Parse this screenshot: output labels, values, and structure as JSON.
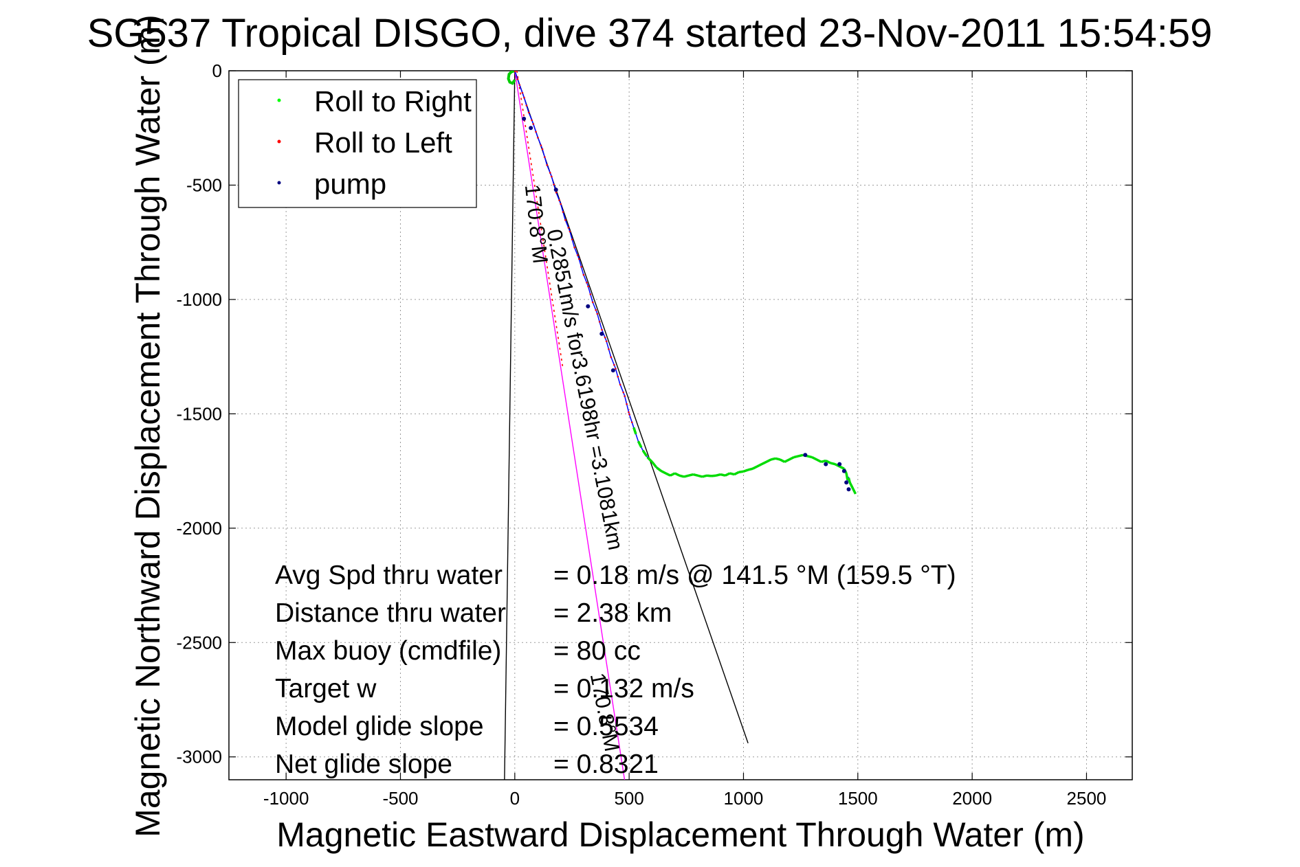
{
  "chart_data": {
    "type": "line",
    "title": "SG537 Tropical DISGO, dive 374 started 23-Nov-2011 15:54:59",
    "xlabel": "Magnetic Eastward Displacement Through Water (m)",
    "ylabel": "Magnetic Northward Displacement Through Water (m)",
    "xlim": [
      -1250,
      2700
    ],
    "ylim": [
      -3100,
      0
    ],
    "xticks": [
      -1000,
      -500,
      0,
      500,
      1000,
      1500,
      2000,
      2500
    ],
    "yticks": [
      0,
      -500,
      -1000,
      -1500,
      -2000,
      -2500,
      -3000
    ],
    "grid": true,
    "legend": {
      "position": "top-left",
      "entries": [
        {
          "label": "Roll to Right",
          "color": "#00ff00"
        },
        {
          "label": "Roll to Left",
          "color": "#ff0000"
        },
        {
          "label": "pump",
          "color": "#000080"
        }
      ]
    },
    "track": {
      "name": "track",
      "color": "#0000ff",
      "x": [
        0,
        20,
        40,
        60,
        80,
        100,
        120,
        140,
        160,
        180,
        200,
        220,
        240,
        260,
        280,
        300,
        320,
        340,
        360,
        380,
        400,
        420,
        440,
        460,
        480,
        500,
        520,
        540,
        560,
        580,
        600,
        620,
        640,
        660,
        680,
        700,
        720,
        740,
        760,
        780,
        800,
        820,
        840,
        860,
        880,
        900,
        920,
        940,
        960,
        980,
        1000,
        1020,
        1040,
        1060,
        1080,
        1100,
        1120,
        1140,
        1160,
        1180,
        1200,
        1220,
        1240,
        1260,
        1280,
        1300,
        1320,
        1340,
        1360,
        1380,
        1400,
        1420,
        1440,
        1450,
        1455,
        1460,
        1465,
        1470,
        1480,
        1490
      ],
      "y": [
        0,
        -60,
        -115,
        -180,
        -230,
        -290,
        -340,
        -410,
        -460,
        -530,
        -580,
        -650,
        -700,
        -770,
        -820,
        -890,
        -940,
        -1010,
        -1060,
        -1130,
        -1180,
        -1250,
        -1300,
        -1370,
        -1420,
        -1500,
        -1560,
        -1620,
        -1660,
        -1690,
        -1710,
        -1735,
        -1750,
        -1760,
        -1770,
        -1760,
        -1770,
        -1775,
        -1770,
        -1765,
        -1770,
        -1775,
        -1770,
        -1772,
        -1770,
        -1765,
        -1770,
        -1760,
        -1765,
        -1755,
        -1752,
        -1745,
        -1740,
        -1730,
        -1720,
        -1710,
        -1700,
        -1695,
        -1700,
        -1710,
        -1700,
        -1690,
        -1685,
        -1680,
        -1685,
        -1690,
        -1700,
        -1710,
        -1705,
        -1715,
        -1720,
        -1730,
        -1740,
        -1760,
        -1790,
        -1780,
        -1800,
        -1810,
        -1830,
        -1850
      ]
    },
    "surface_loop": {
      "x": [
        0,
        -15,
        -25,
        -28,
        -22,
        -10,
        0
      ],
      "y": [
        0,
        -5,
        -15,
        -35,
        -50,
        -55,
        -40
      ]
    },
    "pump_points": {
      "x": [
        40,
        70,
        180,
        320,
        380,
        430,
        1270,
        1360,
        1420,
        1440,
        1450,
        1460
      ],
      "y": [
        -210,
        -250,
        -520,
        -1030,
        -1150,
        -1310,
        -1680,
        -1720,
        -1720,
        -1750,
        -1800,
        -1830
      ]
    },
    "reference_lines": [
      {
        "name": "course line",
        "color": "#000000",
        "x": [
          0,
          1020
        ],
        "y": [
          0,
          -2940
        ]
      },
      {
        "name": "heading line 170.8",
        "color": "#000000",
        "x": [
          0,
          -45
        ],
        "y": [
          0,
          -3100
        ]
      },
      {
        "name": "current line",
        "color": "#ff00ff",
        "x": [
          0,
          480
        ],
        "y": [
          0,
          -3100
        ]
      }
    ],
    "annotations": [
      {
        "text": "0.2851m/s for3.6198hr =3.1081km",
        "x": 140,
        "y": -700
      },
      {
        "text": "170.8°M",
        "x": 45,
        "y": -500
      },
      {
        "text": "170.8°M",
        "x": 330,
        "y": -2640
      }
    ],
    "stats": [
      {
        "label": "Avg Spd thru water",
        "value": "=  0.18 m/s @ 141.5 °M (159.5 °T)"
      },
      {
        "label": "Distance thru water",
        "value": "=  2.38 km"
      },
      {
        "label": "Max buoy (cmdfile)",
        "value": "= 80 cc"
      },
      {
        "label": "Target w",
        "value": "= 0.132 m/s"
      },
      {
        "label": "Model glide slope",
        "value": "= 0.5534"
      },
      {
        "label": "Net glide slope",
        "value": "= 0.8321"
      }
    ]
  }
}
